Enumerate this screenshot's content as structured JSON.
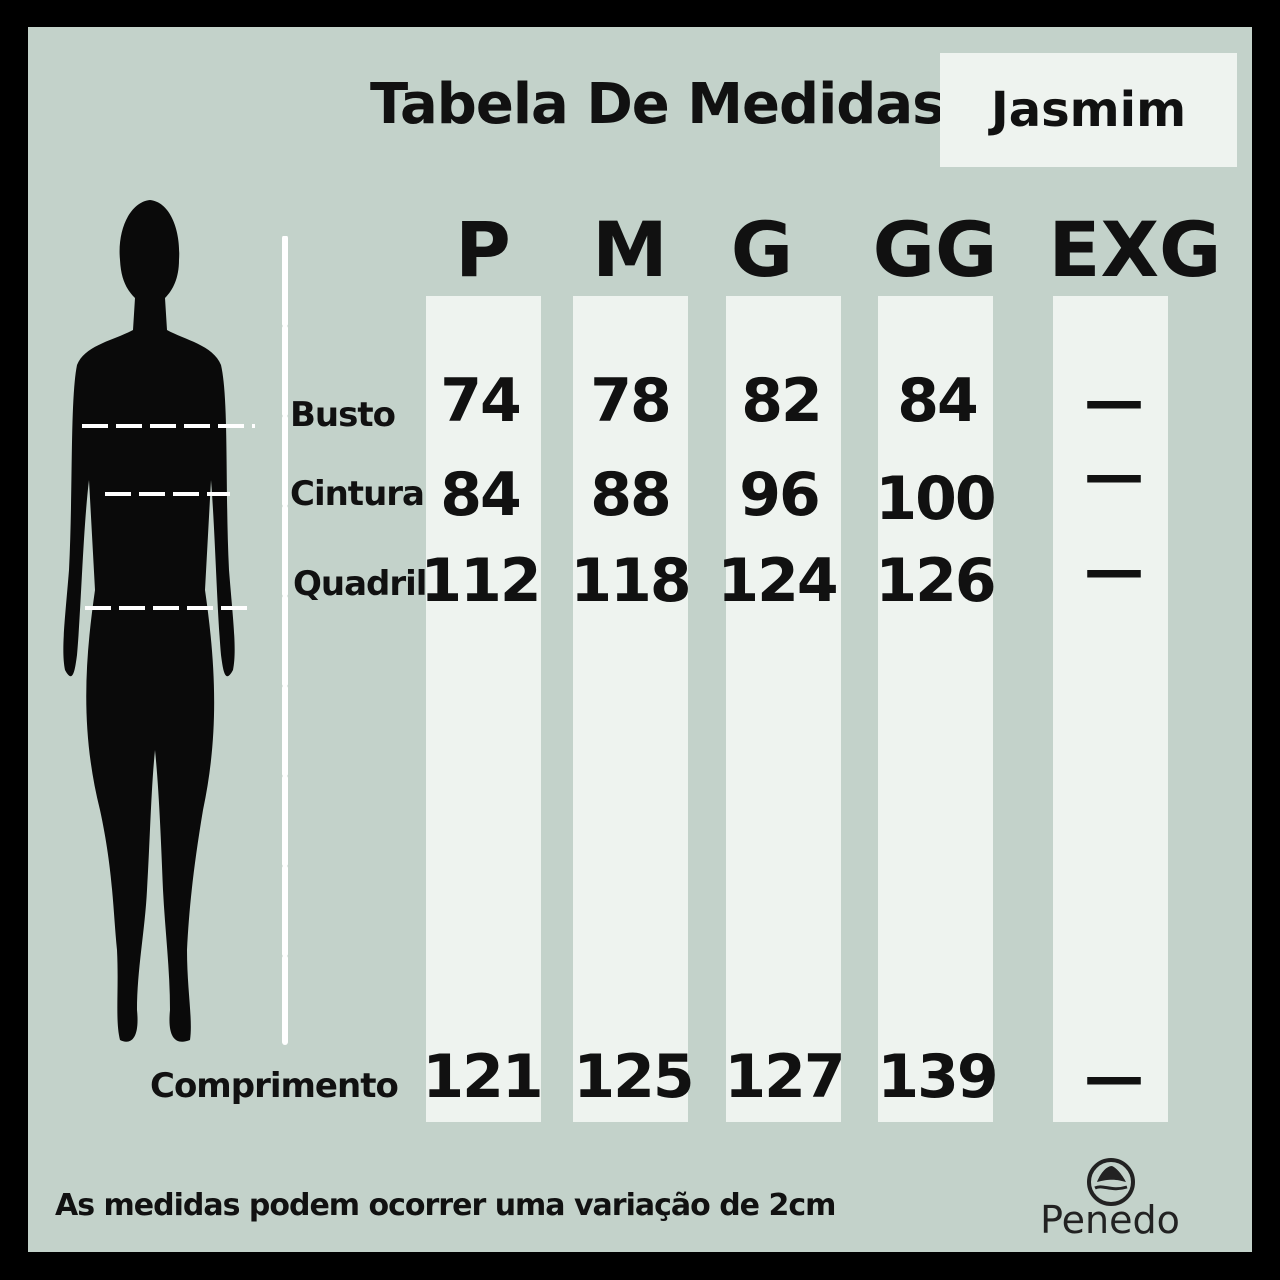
{
  "title": "Tabela De Medidas",
  "model_name": "Jasmim",
  "sizes": [
    "P",
    "M",
    "G",
    "GG",
    "EXG"
  ],
  "rows": [
    {
      "label": "Busto",
      "values": [
        "74",
        "78",
        "82",
        "84",
        "—"
      ]
    },
    {
      "label": "Cintura",
      "values": [
        "84",
        "88",
        "96",
        "100",
        "—"
      ]
    },
    {
      "label": "Quadril",
      "values": [
        "112",
        "118",
        "124",
        "126",
        "—"
      ]
    },
    {
      "label": "Comprimento",
      "values": [
        "121",
        "125",
        "127",
        "139",
        "—"
      ]
    }
  ],
  "footer_note": "As medidas podem ocorrer uma variação de 2cm",
  "brand": "Penedo",
  "colors": {
    "background": "#c3d2ca",
    "column": "#eef3ef",
    "text": "#111111",
    "frame": "#000000"
  }
}
